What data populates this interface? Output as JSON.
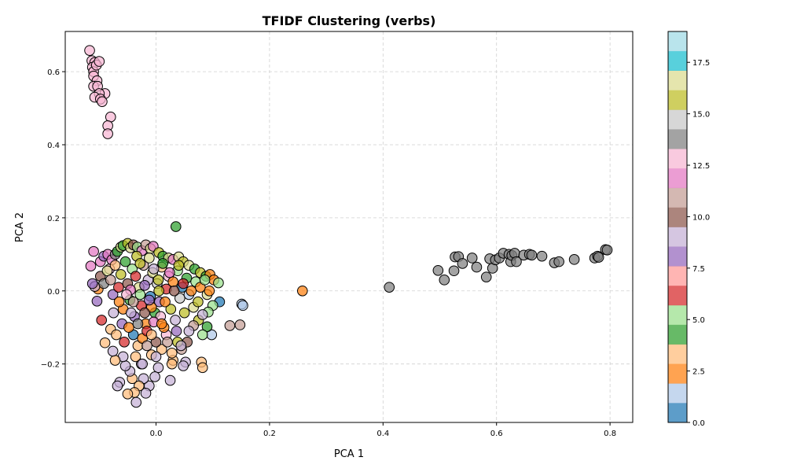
{
  "chart_data": {
    "type": "scatter",
    "title": "TFIDF Clustering (verbs)",
    "xlabel": "PCA 1",
    "ylabel": "PCA 2",
    "xlim": [
      -0.16,
      0.84
    ],
    "ylim": [
      -0.36,
      0.71
    ],
    "x_ticks": [
      0.0,
      0.2,
      0.4,
      0.6,
      0.8
    ],
    "x_tick_labels": [
      "0.0",
      "0.2",
      "0.4",
      "0.6",
      "0.8"
    ],
    "y_ticks": [
      -0.2,
      0.0,
      0.2,
      0.4,
      0.6
    ],
    "y_tick_labels": [
      "−0.2",
      "0.0",
      "0.2",
      "0.4",
      "0.6"
    ],
    "grid": true,
    "colormap": "tab20",
    "colorbar": {
      "min": 0,
      "max": 19,
      "ticks": [
        0.0,
        2.5,
        5.0,
        7.5,
        10.0,
        12.5,
        15.0,
        17.5
      ],
      "tick_labels": [
        "0.0",
        "2.5",
        "5.0",
        "7.5",
        "10.0",
        "12.5",
        "15.0",
        "17.5"
      ],
      "colors": [
        "#1f77b4",
        "#aec7e8",
        "#ff7f0e",
        "#ffbb78",
        "#2ca02c",
        "#98df8a",
        "#d62728",
        "#ff9896",
        "#9467bd",
        "#c5b0d5",
        "#8c564b",
        "#c49c94",
        "#e377c2",
        "#f7b6d2",
        "#7f7f7f",
        "#c7c7c7",
        "#bcbd22",
        "#dbdb8d",
        "#17becf",
        "#9edae5"
      ]
    },
    "points": [
      {
        "x": -0.117,
        "y": 0.658,
        "c": 13
      },
      {
        "x": -0.113,
        "y": 0.63,
        "c": 13
      },
      {
        "x": -0.108,
        "y": 0.625,
        "c": 13
      },
      {
        "x": -0.112,
        "y": 0.612,
        "c": 13
      },
      {
        "x": -0.11,
        "y": 0.6,
        "c": 13
      },
      {
        "x": -0.105,
        "y": 0.618,
        "c": 13
      },
      {
        "x": -0.1,
        "y": 0.628,
        "c": 13
      },
      {
        "x": -0.11,
        "y": 0.588,
        "c": 13
      },
      {
        "x": -0.104,
        "y": 0.575,
        "c": 13
      },
      {
        "x": -0.11,
        "y": 0.56,
        "c": 13
      },
      {
        "x": -0.103,
        "y": 0.56,
        "c": 13
      },
      {
        "x": -0.09,
        "y": 0.54,
        "c": 13
      },
      {
        "x": -0.1,
        "y": 0.54,
        "c": 13
      },
      {
        "x": -0.108,
        "y": 0.53,
        "c": 13
      },
      {
        "x": -0.098,
        "y": 0.525,
        "c": 13
      },
      {
        "x": -0.095,
        "y": 0.518,
        "c": 13
      },
      {
        "x": -0.08,
        "y": 0.476,
        "c": 13
      },
      {
        "x": -0.085,
        "y": 0.452,
        "c": 13
      },
      {
        "x": -0.085,
        "y": 0.43,
        "c": 13
      },
      {
        "x": 0.035,
        "y": 0.176,
        "c": 4
      },
      {
        "x": 0.258,
        "y": 0.0,
        "c": 2
      },
      {
        "x": 0.151,
        "y": -0.036,
        "c": 1
      },
      {
        "x": 0.153,
        "y": -0.04,
        "c": 1
      },
      {
        "x": 0.13,
        "y": -0.095,
        "c": 11
      },
      {
        "x": 0.148,
        "y": -0.093,
        "c": 11
      },
      {
        "x": 0.411,
        "y": 0.01,
        "c": 14
      },
      {
        "x": 0.497,
        "y": 0.056,
        "c": 14
      },
      {
        "x": 0.508,
        "y": 0.03,
        "c": 14
      },
      {
        "x": 0.525,
        "y": 0.055,
        "c": 14
      },
      {
        "x": 0.527,
        "y": 0.093,
        "c": 14
      },
      {
        "x": 0.533,
        "y": 0.094,
        "c": 14
      },
      {
        "x": 0.54,
        "y": 0.075,
        "c": 14
      },
      {
        "x": 0.557,
        "y": 0.09,
        "c": 14
      },
      {
        "x": 0.565,
        "y": 0.065,
        "c": 14
      },
      {
        "x": 0.582,
        "y": 0.038,
        "c": 14
      },
      {
        "x": 0.588,
        "y": 0.088,
        "c": 14
      },
      {
        "x": 0.593,
        "y": 0.062,
        "c": 14
      },
      {
        "x": 0.598,
        "y": 0.085,
        "c": 14
      },
      {
        "x": 0.605,
        "y": 0.09,
        "c": 14
      },
      {
        "x": 0.612,
        "y": 0.103,
        "c": 14
      },
      {
        "x": 0.622,
        "y": 0.1,
        "c": 14
      },
      {
        "x": 0.625,
        "y": 0.08,
        "c": 14
      },
      {
        "x": 0.627,
        "y": 0.097,
        "c": 14
      },
      {
        "x": 0.632,
        "y": 0.103,
        "c": 14
      },
      {
        "x": 0.635,
        "y": 0.08,
        "c": 14
      },
      {
        "x": 0.648,
        "y": 0.098,
        "c": 14
      },
      {
        "x": 0.658,
        "y": 0.1,
        "c": 14
      },
      {
        "x": 0.662,
        "y": 0.098,
        "c": 14
      },
      {
        "x": 0.68,
        "y": 0.095,
        "c": 14
      },
      {
        "x": 0.702,
        "y": 0.077,
        "c": 14
      },
      {
        "x": 0.71,
        "y": 0.08,
        "c": 14
      },
      {
        "x": 0.737,
        "y": 0.086,
        "c": 14
      },
      {
        "x": 0.773,
        "y": 0.09,
        "c": 14
      },
      {
        "x": 0.778,
        "y": 0.095,
        "c": 14
      },
      {
        "x": 0.78,
        "y": 0.092,
        "c": 14
      },
      {
        "x": 0.792,
        "y": 0.113,
        "c": 14
      },
      {
        "x": 0.795,
        "y": 0.112,
        "c": 14
      },
      {
        "x": -0.115,
        "y": 0.068,
        "c": 12
      },
      {
        "x": -0.11,
        "y": 0.108,
        "c": 12
      },
      {
        "x": -0.098,
        "y": 0.08,
        "c": 12
      },
      {
        "x": -0.092,
        "y": 0.095,
        "c": 8
      },
      {
        "x": -0.085,
        "y": 0.1,
        "c": 12
      },
      {
        "x": -0.082,
        "y": 0.06,
        "c": 13
      },
      {
        "x": -0.078,
        "y": 0.085,
        "c": 12
      },
      {
        "x": -0.072,
        "y": 0.1,
        "c": 14
      },
      {
        "x": -0.068,
        "y": 0.108,
        "c": 4
      },
      {
        "x": -0.062,
        "y": 0.12,
        "c": 17
      },
      {
        "x": -0.058,
        "y": 0.124,
        "c": 4
      },
      {
        "x": -0.05,
        "y": 0.13,
        "c": 16
      },
      {
        "x": -0.045,
        "y": 0.118,
        "c": 17
      },
      {
        "x": -0.04,
        "y": 0.126,
        "c": 10
      },
      {
        "x": -0.033,
        "y": 0.12,
        "c": 5
      },
      {
        "x": -0.025,
        "y": 0.11,
        "c": 12
      },
      {
        "x": -0.018,
        "y": 0.126,
        "c": 11
      },
      {
        "x": -0.01,
        "y": 0.116,
        "c": 17
      },
      {
        "x": -0.005,
        "y": 0.122,
        "c": 12
      },
      {
        "x": 0.005,
        "y": 0.105,
        "c": 16
      },
      {
        "x": 0.012,
        "y": 0.095,
        "c": 4
      },
      {
        "x": 0.022,
        "y": 0.09,
        "c": 17
      },
      {
        "x": 0.03,
        "y": 0.086,
        "c": 12
      },
      {
        "x": 0.04,
        "y": 0.093,
        "c": 17
      },
      {
        "x": 0.048,
        "y": 0.08,
        "c": 16
      },
      {
        "x": 0.058,
        "y": 0.07,
        "c": 17
      },
      {
        "x": 0.068,
        "y": 0.06,
        "c": 4
      },
      {
        "x": 0.078,
        "y": 0.05,
        "c": 16
      },
      {
        "x": 0.088,
        "y": 0.04,
        "c": 4
      },
      {
        "x": 0.095,
        "y": 0.045,
        "c": 2
      },
      {
        "x": 0.102,
        "y": 0.03,
        "c": 2
      },
      {
        "x": 0.11,
        "y": 0.022,
        "c": 5
      },
      {
        "x": 0.112,
        "y": -0.03,
        "c": 0
      },
      {
        "x": 0.1,
        "y": -0.04,
        "c": 5
      },
      {
        "x": 0.092,
        "y": -0.058,
        "c": 5
      },
      {
        "x": 0.098,
        "y": -0.12,
        "c": 1
      },
      {
        "x": 0.09,
        "y": -0.098,
        "c": 4
      },
      {
        "x": 0.082,
        "y": -0.12,
        "c": 5
      },
      {
        "x": 0.075,
        "y": -0.08,
        "c": 16
      },
      {
        "x": 0.066,
        "y": -0.095,
        "c": 11
      },
      {
        "x": 0.058,
        "y": -0.11,
        "c": 9
      },
      {
        "x": 0.055,
        "y": -0.14,
        "c": 10
      },
      {
        "x": 0.052,
        "y": -0.195,
        "c": 9
      },
      {
        "x": 0.048,
        "y": -0.205,
        "c": 9
      },
      {
        "x": 0.08,
        "y": -0.195,
        "c": 3
      },
      {
        "x": 0.082,
        "y": -0.21,
        "c": 3
      },
      {
        "x": 0.045,
        "y": -0.16,
        "c": 11
      },
      {
        "x": 0.038,
        "y": -0.14,
        "c": 16
      },
      {
        "x": 0.03,
        "y": -0.19,
        "c": 3
      },
      {
        "x": 0.028,
        "y": -0.2,
        "c": 3
      },
      {
        "x": 0.025,
        "y": -0.245,
        "c": 9
      },
      {
        "x": 0.018,
        "y": -0.12,
        "c": 13
      },
      {
        "x": 0.01,
        "y": -0.16,
        "c": 3
      },
      {
        "x": 0.004,
        "y": -0.21,
        "c": 9
      },
      {
        "x": -0.002,
        "y": -0.235,
        "c": 9
      },
      {
        "x": -0.008,
        "y": -0.175,
        "c": 3
      },
      {
        "x": -0.012,
        "y": -0.26,
        "c": 9
      },
      {
        "x": -0.018,
        "y": -0.28,
        "c": 9
      },
      {
        "x": -0.022,
        "y": -0.24,
        "c": 9
      },
      {
        "x": -0.026,
        "y": -0.2,
        "c": 9
      },
      {
        "x": -0.03,
        "y": -0.26,
        "c": 3
      },
      {
        "x": -0.035,
        "y": -0.305,
        "c": 9
      },
      {
        "x": -0.038,
        "y": -0.278,
        "c": 3
      },
      {
        "x": -0.042,
        "y": -0.24,
        "c": 3
      },
      {
        "x": -0.046,
        "y": -0.22,
        "c": 9
      },
      {
        "x": -0.05,
        "y": -0.282,
        "c": 3
      },
      {
        "x": -0.054,
        "y": -0.205,
        "c": 9
      },
      {
        "x": -0.058,
        "y": -0.18,
        "c": 9
      },
      {
        "x": -0.064,
        "y": -0.25,
        "c": 9
      },
      {
        "x": -0.068,
        "y": -0.26,
        "c": 9
      },
      {
        "x": -0.072,
        "y": -0.19,
        "c": 3
      },
      {
        "x": -0.076,
        "y": -0.165,
        "c": 9
      },
      {
        "x": -0.08,
        "y": -0.105,
        "c": 3
      },
      {
        "x": -0.09,
        "y": -0.142,
        "c": 3
      },
      {
        "x": -0.096,
        "y": -0.08,
        "c": 6
      },
      {
        "x": -0.102,
        "y": 0.005,
        "c": 2
      },
      {
        "x": -0.108,
        "y": 0.012,
        "c": 9
      },
      {
        "x": -0.112,
        "y": 0.02,
        "c": 8
      },
      {
        "x": -0.104,
        "y": -0.028,
        "c": 8
      },
      {
        "x": -0.098,
        "y": 0.04,
        "c": 10
      },
      {
        "x": -0.092,
        "y": 0.02,
        "c": 14
      },
      {
        "x": -0.086,
        "y": 0.055,
        "c": 17
      },
      {
        "x": -0.08,
        "y": 0.03,
        "c": 11
      },
      {
        "x": -0.076,
        "y": -0.01,
        "c": 8
      },
      {
        "x": -0.072,
        "y": 0.07,
        "c": 3
      },
      {
        "x": -0.066,
        "y": 0.01,
        "c": 6
      },
      {
        "x": -0.062,
        "y": 0.045,
        "c": 16
      },
      {
        "x": -0.058,
        "y": -0.05,
        "c": 2
      },
      {
        "x": -0.054,
        "y": 0.08,
        "c": 4
      },
      {
        "x": -0.05,
        "y": 0.02,
        "c": 10
      },
      {
        "x": -0.046,
        "y": -0.025,
        "c": 4
      },
      {
        "x": -0.042,
        "y": 0.06,
        "c": 5
      },
      {
        "x": -0.038,
        "y": -0.07,
        "c": 8
      },
      {
        "x": -0.034,
        "y": 0.095,
        "c": 16
      },
      {
        "x": -0.03,
        "y": 0.01,
        "c": 17
      },
      {
        "x": -0.026,
        "y": -0.04,
        "c": 6
      },
      {
        "x": -0.022,
        "y": 0.07,
        "c": 11
      },
      {
        "x": -0.018,
        "y": -0.09,
        "c": 2
      },
      {
        "x": -0.014,
        "y": 0.03,
        "c": 9
      },
      {
        "x": -0.01,
        "y": -0.015,
        "c": 0
      },
      {
        "x": -0.006,
        "y": 0.05,
        "c": 17
      },
      {
        "x": -0.002,
        "y": -0.06,
        "c": 4
      },
      {
        "x": 0.002,
        "y": 0.02,
        "c": 15
      },
      {
        "x": 0.006,
        "y": -0.03,
        "c": 8
      },
      {
        "x": 0.01,
        "y": 0.065,
        "c": 3
      },
      {
        "x": 0.014,
        "y": -0.1,
        "c": 2
      },
      {
        "x": 0.018,
        "y": 0.005,
        "c": 6
      },
      {
        "x": 0.022,
        "y": 0.04,
        "c": 13
      },
      {
        "x": 0.026,
        "y": -0.05,
        "c": 16
      },
      {
        "x": 0.03,
        "y": 0.025,
        "c": 2
      },
      {
        "x": 0.034,
        "y": -0.08,
        "c": 9
      },
      {
        "x": 0.038,
        "y": 0.055,
        "c": 5
      },
      {
        "x": 0.042,
        "y": -0.02,
        "c": 15
      },
      {
        "x": 0.046,
        "y": 0.01,
        "c": 0
      },
      {
        "x": 0.05,
        "y": -0.06,
        "c": 16
      },
      {
        "x": 0.054,
        "y": 0.035,
        "c": 4
      },
      {
        "x": 0.058,
        "y": -0.01,
        "c": 1
      },
      {
        "x": 0.062,
        "y": 0.0,
        "c": 2
      },
      {
        "x": 0.066,
        "y": -0.045,
        "c": 17
      },
      {
        "x": 0.07,
        "y": 0.025,
        "c": 5
      },
      {
        "x": 0.074,
        "y": -0.03,
        "c": 16
      },
      {
        "x": 0.078,
        "y": 0.01,
        "c": 2
      },
      {
        "x": 0.082,
        "y": -0.065,
        "c": 9
      },
      {
        "x": 0.086,
        "y": 0.03,
        "c": 5
      },
      {
        "x": 0.09,
        "y": -0.01,
        "c": 17
      },
      {
        "x": 0.094,
        "y": 0.0,
        "c": 2
      },
      {
        "x": -0.045,
        "y": 0.003,
        "c": 12
      },
      {
        "x": -0.04,
        "y": -0.12,
        "c": 0
      },
      {
        "x": -0.036,
        "y": 0.04,
        "c": 6
      },
      {
        "x": -0.032,
        "y": -0.15,
        "c": 3
      },
      {
        "x": -0.028,
        "y": 0.075,
        "c": 16
      },
      {
        "x": -0.024,
        "y": -0.13,
        "c": 2
      },
      {
        "x": -0.02,
        "y": 0.015,
        "c": 8
      },
      {
        "x": -0.016,
        "y": -0.11,
        "c": 6
      },
      {
        "x": -0.012,
        "y": 0.09,
        "c": 17
      },
      {
        "x": -0.008,
        "y": -0.045,
        "c": 2
      },
      {
        "x": -0.004,
        "y": 0.06,
        "c": 9
      },
      {
        "x": 0.0,
        "y": -0.14,
        "c": 10
      },
      {
        "x": 0.004,
        "y": 0.03,
        "c": 16
      },
      {
        "x": 0.008,
        "y": -0.07,
        "c": 13
      },
      {
        "x": 0.012,
        "y": 0.075,
        "c": 4
      },
      {
        "x": 0.016,
        "y": -0.03,
        "c": 2
      },
      {
        "x": 0.02,
        "y": -0.14,
        "c": 11
      },
      {
        "x": 0.024,
        "y": 0.05,
        "c": 12
      },
      {
        "x": 0.028,
        "y": -0.17,
        "c": 3
      },
      {
        "x": 0.032,
        "y": 0.0,
        "c": 10
      },
      {
        "x": 0.036,
        "y": -0.11,
        "c": 8
      },
      {
        "x": 0.04,
        "y": 0.07,
        "c": 16
      },
      {
        "x": 0.044,
        "y": -0.15,
        "c": 9
      },
      {
        "x": 0.048,
        "y": 0.02,
        "c": 6
      },
      {
        "x": -0.075,
        "y": -0.06,
        "c": 9
      },
      {
        "x": -0.07,
        "y": -0.12,
        "c": 3
      },
      {
        "x": -0.065,
        "y": -0.03,
        "c": 2
      },
      {
        "x": -0.06,
        "y": -0.09,
        "c": 8
      },
      {
        "x": -0.056,
        "y": -0.14,
        "c": 6
      },
      {
        "x": -0.052,
        "y": -0.01,
        "c": 13
      },
      {
        "x": -0.048,
        "y": -0.1,
        "c": 2
      },
      {
        "x": -0.044,
        "y": -0.06,
        "c": 9
      },
      {
        "x": -0.04,
        "y": -0.03,
        "c": 11
      },
      {
        "x": -0.036,
        "y": -0.18,
        "c": 3
      },
      {
        "x": -0.032,
        "y": -0.09,
        "c": 14
      },
      {
        "x": -0.028,
        "y": -0.01,
        "c": 5
      },
      {
        "x": -0.024,
        "y": -0.2,
        "c": 9
      },
      {
        "x": -0.02,
        "y": -0.06,
        "c": 10
      },
      {
        "x": -0.016,
        "y": -0.15,
        "c": 11
      },
      {
        "x": -0.012,
        "y": -0.025,
        "c": 8
      },
      {
        "x": -0.008,
        "y": -0.12,
        "c": 3
      },
      {
        "x": -0.004,
        "y": -0.085,
        "c": 12
      },
      {
        "x": 0.0,
        "y": -0.18,
        "c": 9
      },
      {
        "x": 0.005,
        "y": 0.0,
        "c": 16
      },
      {
        "x": 0.01,
        "y": -0.09,
        "c": 2
      }
    ]
  }
}
